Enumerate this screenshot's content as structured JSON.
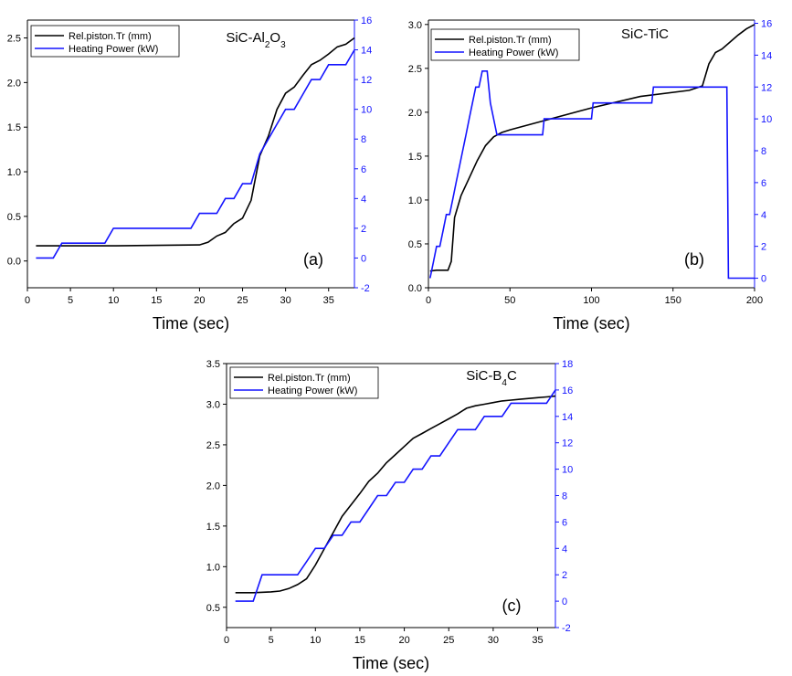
{
  "chart_data": [
    {
      "id": "a",
      "type": "line",
      "title": "SiC-Al2O3",
      "panel_label": "(a)",
      "xlabel": "Time (sec)",
      "xlim": [
        0,
        38
      ],
      "xticks": [
        0,
        5,
        10,
        15,
        20,
        25,
        30,
        35
      ],
      "ylim_left": [
        -0.3,
        2.7
      ],
      "yticks_left": [
        0.0,
        0.5,
        1.0,
        1.5,
        2.0,
        2.5
      ],
      "ylim_right": [
        -2,
        16
      ],
      "yticks_right": [
        -2,
        0,
        2,
        4,
        6,
        8,
        10,
        12,
        14,
        16
      ],
      "legend_position": "top-left",
      "series": [
        {
          "name": "Rel.piston.Tr (mm)",
          "color": "#000000",
          "axis": "left",
          "x": [
            1,
            5,
            10,
            15,
            20,
            21,
            22,
            23,
            24,
            25,
            26,
            27,
            28,
            29,
            30,
            31,
            32,
            33,
            34,
            35,
            36,
            37,
            38
          ],
          "y": [
            0.17,
            0.17,
            0.17,
            0.175,
            0.18,
            0.21,
            0.28,
            0.32,
            0.42,
            0.48,
            0.68,
            1.18,
            1.4,
            1.7,
            1.88,
            1.95,
            2.08,
            2.2,
            2.25,
            2.32,
            2.4,
            2.43,
            2.5
          ]
        },
        {
          "name": "Heating Power (kW)",
          "color": "#1414ff",
          "axis": "right",
          "x": [
            1,
            3,
            4,
            9,
            10,
            19,
            20,
            22,
            23,
            24,
            25,
            26,
            27,
            28,
            29,
            30,
            31,
            32,
            33,
            34,
            35,
            36,
            37,
            38
          ],
          "y": [
            0,
            0,
            1,
            1,
            2,
            2,
            3,
            3,
            4,
            4,
            5,
            5,
            7,
            8,
            9,
            10,
            10,
            11,
            12,
            12,
            13,
            13,
            13,
            14
          ]
        }
      ]
    },
    {
      "id": "b",
      "type": "line",
      "title": "SiC-TiC",
      "panel_label": "(b)",
      "xlabel": "Time (sec)",
      "xlim": [
        0,
        200
      ],
      "xticks": [
        0,
        50,
        100,
        150,
        200
      ],
      "ylim_left": [
        0.0,
        3.05
      ],
      "yticks_left": [
        0.0,
        0.5,
        1.0,
        1.5,
        2.0,
        2.5,
        3.0
      ],
      "ylim_right": [
        -0.6,
        16.2
      ],
      "yticks_right": [
        0,
        2,
        4,
        6,
        8,
        10,
        12,
        14,
        16
      ],
      "legend_position": "top-left",
      "series": [
        {
          "name": "Rel.piston.Tr (mm)",
          "color": "#000000",
          "axis": "left",
          "x": [
            1,
            5,
            12,
            14,
            16,
            20,
            25,
            30,
            35,
            40,
            45,
            50,
            70,
            100,
            130,
            160,
            168,
            172,
            176,
            180,
            185,
            190,
            195,
            200
          ],
          "y": [
            0.19,
            0.2,
            0.2,
            0.3,
            0.8,
            1.05,
            1.25,
            1.45,
            1.62,
            1.72,
            1.77,
            1.8,
            1.9,
            2.05,
            2.18,
            2.25,
            2.3,
            2.55,
            2.68,
            2.72,
            2.8,
            2.88,
            2.95,
            3.0
          ]
        },
        {
          "name": "Heating Power (kW)",
          "color": "#1414ff",
          "axis": "right",
          "x": [
            1,
            3,
            5,
            7,
            9,
            11,
            13,
            15,
            17,
            19,
            21,
            23,
            25,
            27,
            29,
            31,
            33,
            36,
            38,
            40,
            42,
            70,
            71,
            100,
            101,
            137,
            138,
            183,
            184,
            200
          ],
          "y": [
            0,
            1,
            2,
            2,
            3,
            4,
            4,
            5,
            6,
            7,
            8,
            9,
            10,
            11,
            12,
            12,
            13,
            13,
            11,
            10,
            9,
            9,
            10,
            10,
            11,
            11,
            12,
            12,
            0,
            0
          ]
        }
      ]
    },
    {
      "id": "c",
      "type": "line",
      "title": "SiC-B4C",
      "panel_label": "(c)",
      "xlabel": "Time (sec)",
      "xlim": [
        0,
        37
      ],
      "xticks": [
        0,
        5,
        10,
        15,
        20,
        25,
        30,
        35
      ],
      "ylim_left": [
        0.25,
        3.5
      ],
      "yticks_left": [
        0.5,
        1.0,
        1.5,
        2.0,
        2.5,
        3.0,
        3.5
      ],
      "ylim_right": [
        -2,
        18
      ],
      "yticks_right": [
        -2,
        0,
        2,
        4,
        6,
        8,
        10,
        12,
        14,
        16,
        18
      ],
      "legend_position": "top-left",
      "series": [
        {
          "name": "Rel.piston.Tr (mm)",
          "color": "#000000",
          "axis": "left",
          "x": [
            1,
            3,
            5,
            6,
            7,
            8,
            9,
            10,
            11,
            12,
            13,
            14,
            15,
            16,
            17,
            18,
            19,
            20,
            21,
            22,
            23,
            24,
            25,
            26,
            27,
            28,
            29,
            30,
            31,
            32,
            33,
            34,
            35,
            36,
            37
          ],
          "y": [
            0.68,
            0.68,
            0.69,
            0.7,
            0.73,
            0.78,
            0.85,
            1.02,
            1.22,
            1.42,
            1.62,
            1.76,
            1.9,
            2.05,
            2.15,
            2.28,
            2.38,
            2.48,
            2.58,
            2.64,
            2.7,
            2.76,
            2.82,
            2.88,
            2.95,
            2.98,
            3.0,
            3.02,
            3.04,
            3.05,
            3.06,
            3.07,
            3.08,
            3.09,
            3.1
          ]
        },
        {
          "name": "Heating Power (kW)",
          "color": "#1414ff",
          "axis": "right",
          "x": [
            1,
            3,
            4,
            8,
            9,
            10,
            11,
            12,
            13,
            14,
            15,
            16,
            17,
            18,
            19,
            20,
            21,
            22,
            23,
            24,
            25,
            26,
            27,
            28,
            29,
            30,
            31,
            32,
            33,
            34,
            35,
            36,
            37
          ],
          "y": [
            0,
            0,
            2,
            2,
            3,
            4,
            4,
            5,
            5,
            6,
            6,
            7,
            8,
            8,
            9,
            9,
            10,
            10,
            11,
            11,
            12,
            13,
            13,
            13,
            14,
            14,
            14,
            15,
            15,
            15,
            15,
            15,
            16
          ]
        }
      ]
    }
  ]
}
